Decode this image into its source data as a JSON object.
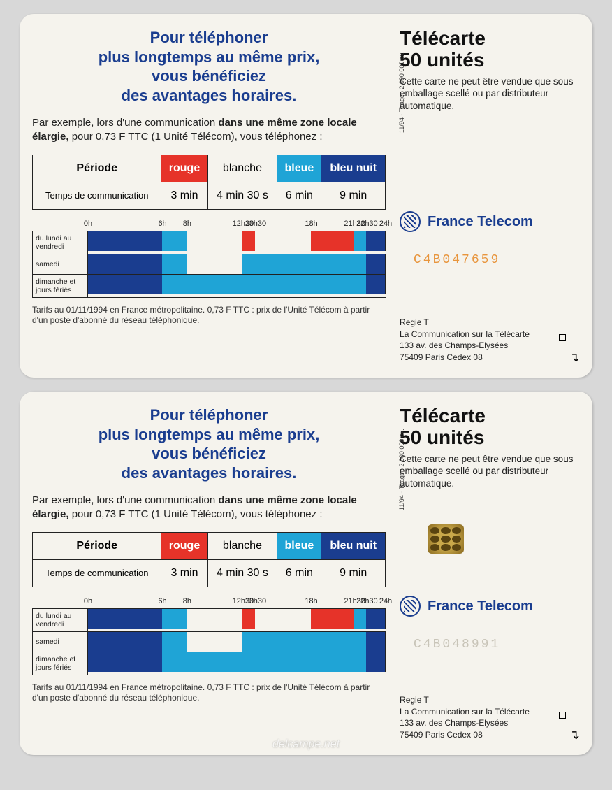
{
  "headline": {
    "l1": "Pour téléphoner",
    "l2": "plus longtemps au même prix,",
    "l3": "vous bénéficiez",
    "l4": "des avantages horaires."
  },
  "subtext": {
    "part1": "Par exemple, lors d'une communication ",
    "bold1": "dans une même zone locale élargie,",
    "part2": " pour 0,73 F TTC (1 Unité Télécom), vous téléphonez :"
  },
  "table": {
    "header": {
      "periode": "Période",
      "rouge": "rouge",
      "blanche": "blanche",
      "bleue": "bleue",
      "bleunuit": "bleu nuit"
    },
    "row": {
      "label": "Temps de communication",
      "rouge": "3 min",
      "blanche": "4 min 30 s",
      "bleue": "6 min",
      "bleunuit": "9 min"
    }
  },
  "timeline": {
    "ticks": [
      {
        "label": "0h",
        "pct": 0
      },
      {
        "label": "6h",
        "pct": 25
      },
      {
        "label": "8h",
        "pct": 33.3
      },
      {
        "label": "12h30",
        "pct": 52.1
      },
      {
        "label": "13h30",
        "pct": 56.3
      },
      {
        "label": "18h",
        "pct": 75
      },
      {
        "label": "21h30",
        "pct": 89.6
      },
      {
        "label": "22h30",
        "pct": 93.75
      },
      {
        "label": "24h",
        "pct": 100
      }
    ],
    "rows": [
      {
        "label": "du lundi au vendredi",
        "segs": [
          {
            "color": "bleunuit",
            "pct": 25
          },
          {
            "color": "bleue",
            "pct": 8.3
          },
          {
            "color": "blanche",
            "pct": 18.8
          },
          {
            "color": "rouge",
            "pct": 4.2
          },
          {
            "color": "blanche",
            "pct": 18.7
          },
          {
            "color": "rouge",
            "pct": 14.6
          },
          {
            "color": "bleue",
            "pct": 4.15
          },
          {
            "color": "bleunuit",
            "pct": 6.25
          }
        ]
      },
      {
        "label": "samedi",
        "segs": [
          {
            "color": "bleunuit",
            "pct": 25
          },
          {
            "color": "bleue",
            "pct": 8.3
          },
          {
            "color": "blanche",
            "pct": 18.8
          },
          {
            "color": "bleue",
            "pct": 41.65
          },
          {
            "color": "bleunuit",
            "pct": 6.25
          }
        ]
      },
      {
        "label": "dimanche et jours fériés",
        "segs": [
          {
            "color": "bleunuit",
            "pct": 25
          },
          {
            "color": "bleue",
            "pct": 68.75
          },
          {
            "color": "bleunuit",
            "pct": 6.25
          }
        ]
      }
    ]
  },
  "footnote": "Tarifs au 01/11/1994 en France métropolitaine. 0,73 F TTC : prix de l'Unité Télécom à partir d'un poste d'abonné du réseau téléphonique.",
  "vertical": "11/94 - Tirage : 2 000 000 ex.",
  "right": {
    "title1": "Télécarte",
    "title2": "50 unités",
    "sub": "Cette carte ne peut être vendue que sous emballage scellé ou par distributeur automatique.",
    "brand": "France Telecom",
    "address": {
      "l1": "Regie T",
      "l2": "La Communication sur la Télécarte",
      "l3": "133 av. des Champs-Elysées",
      "l4": "75409 Paris Cedex 08"
    }
  },
  "cards": [
    {
      "serial": "C4B047659",
      "serialClass": "orange",
      "hasChip": false
    },
    {
      "serial": "C4B048991",
      "serialClass": "faint",
      "hasChip": true
    }
  ],
  "colors": {
    "rouge": "#e63329",
    "blanche": "#f5f3ed",
    "bleue": "#1fa4d6",
    "bleunuit": "#1a3d8f",
    "card_bg": "#f5f3ed",
    "page_bg": "#d8d8d8",
    "headline": "#1a3d8f"
  },
  "watermark": "delcampe.net"
}
